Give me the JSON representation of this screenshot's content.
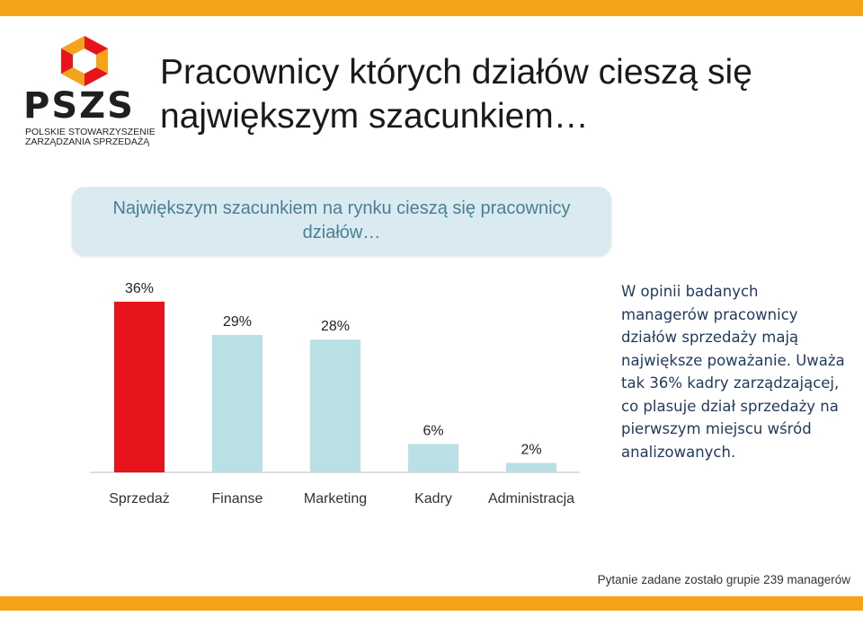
{
  "header": {
    "title_line1": "Pracownicy których działów cieszą się",
    "title_line2": "największym szacunkiem…"
  },
  "logo": {
    "word": "PSZS",
    "line1": "POLSKIE STOWARZYSZENIE",
    "line2": "ZARZĄDZANIA SPRZEDAŻĄ"
  },
  "subtitle": "Największym szacunkiem na rynku cieszą się pracownicy działów…",
  "chart_data": {
    "type": "bar",
    "categories": [
      "Sprzedaż",
      "Finanse",
      "Marketing",
      "Kadry",
      "Administracja"
    ],
    "values": [
      36,
      29,
      28,
      6,
      2
    ],
    "labels": [
      "36%",
      "29%",
      "28%",
      "6%",
      "2%"
    ],
    "highlight_index": 0,
    "colors": {
      "highlight": "#e8141b",
      "default": "#b9e0e4",
      "axis": "#bfbfbf"
    },
    "ylim": [
      0,
      40
    ]
  },
  "description": "W opinii badanych managerów pracownicy działów sprzedaży mają największe poważanie. Uważa tak 36% kadry zarządzającej, co plasuje dział sprzedaży na pierwszym miejscu wśród analizowanych.",
  "footnote": "Pytanie zadane zostało grupie 239 managerów",
  "colors": {
    "accent_bar": "#f5a31a",
    "subtitle_bg": "#daeaf1",
    "subtitle_text": "#4a7f91"
  }
}
